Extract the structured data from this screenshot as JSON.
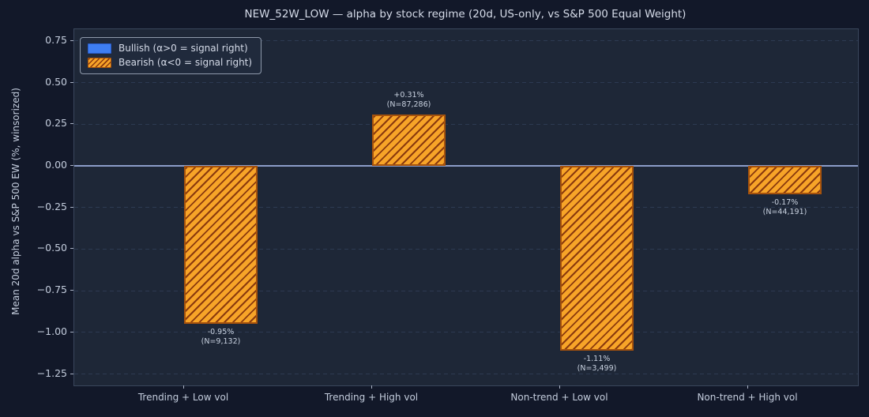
{
  "chart_data": {
    "type": "bar",
    "title": "NEW_52W_LOW — alpha by stock regime (20d, US-only, vs S&P 500 Equal Weight)",
    "ylabel": "Mean 20d alpha vs S&P 500 EW (%, winsorized)",
    "xlabel": "",
    "categories": [
      "Trending + Low vol",
      "Trending + High vol",
      "Non-trend + Low vol",
      "Non-trend + High vol"
    ],
    "series": [
      {
        "name": "Bearish (α<0 = signal right)",
        "values": [
          -0.95,
          0.31,
          -1.11,
          -0.17
        ]
      }
    ],
    "bar_value_labels": [
      "-0.95%",
      "+0.31%",
      "-1.11%",
      "-0.17%"
    ],
    "bar_count_labels": [
      "(N=9,132)",
      "(N=87,286)",
      "(N=3,499)",
      "(N=44,191)"
    ],
    "sample_sizes": [
      9132,
      87286,
      3499,
      44191
    ],
    "ylim": [
      -1.318,
      0.82
    ],
    "yticks": [
      0.75,
      0.5,
      0.25,
      0,
      -0.25,
      -0.5,
      -0.75,
      -1,
      -1.25
    ],
    "ytick_labels": [
      "0.75",
      "0.50",
      "0.25",
      "0.00",
      "−0.25",
      "−0.50",
      "−0.75",
      "−1.00",
      "−1.25"
    ],
    "grid": "horizontal-dashed",
    "legend_position": "upper-left",
    "legend": [
      {
        "label": "Bullish (α>0 = signal right)",
        "swatch": "solid-blue"
      },
      {
        "label": "Bearish (α<0 = signal right)",
        "swatch": "orange-hatched"
      }
    ],
    "colors": {
      "figure_bg": "#121829",
      "axes_bg": "#1e2737",
      "spine": "#3a465c",
      "gridline": "#2d3a52",
      "zero_line": "#8b9cc8",
      "bar_fill": "#f7a428",
      "bar_edge": "#a6520c",
      "bar_hatch": "#8a3a0e",
      "bullish_blue": "#3e7ef2",
      "text": "#d5dbe8",
      "tick_text": "#c3ccdc"
    }
  }
}
